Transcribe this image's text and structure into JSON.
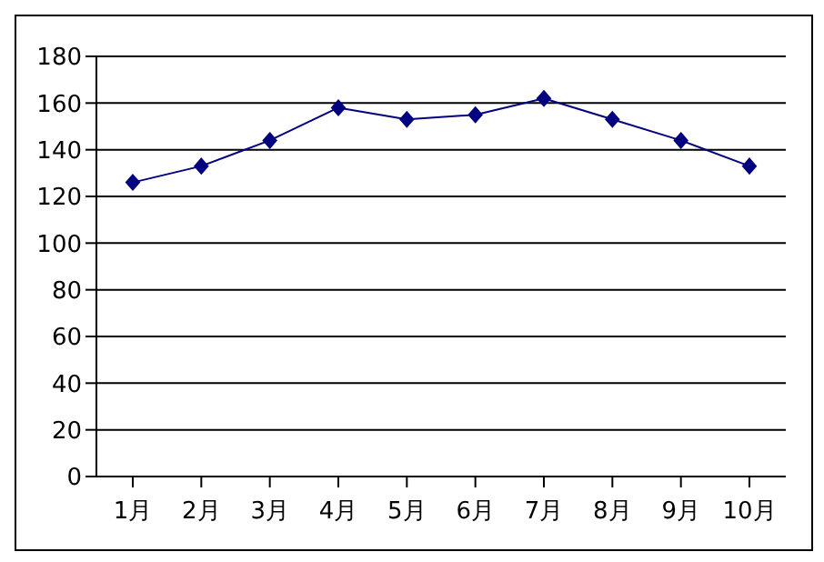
{
  "chart_data": {
    "type": "line",
    "categories": [
      "1月",
      "2月",
      "3月",
      "4月",
      "5月",
      "6月",
      "7月",
      "8月",
      "9月",
      "10月"
    ],
    "series": [
      {
        "color": "#000080",
        "values": [
          126,
          133,
          144,
          158,
          153,
          155,
          162,
          153,
          144,
          133
        ]
      }
    ],
    "ylim": [
      0,
      180
    ],
    "yticks": [
      0,
      20,
      40,
      60,
      80,
      100,
      120,
      140,
      160,
      180
    ],
    "grid": "y",
    "marker": "diamond",
    "line_style": "solid"
  }
}
